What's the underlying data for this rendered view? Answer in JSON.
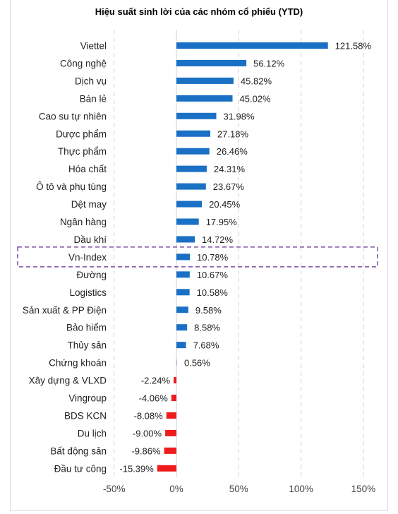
{
  "chart_data": {
    "type": "bar",
    "orientation": "horizontal",
    "title": "Hiệu suất sinh lời của các nhóm cổ phiếu (YTD)",
    "categories": [
      "Viettel",
      "Công nghệ",
      "Dịch vụ",
      "Bán lẻ",
      "Cao su tự nhiên",
      "Dược phẩm",
      "Thực phẩm",
      "Hóa chất",
      "Ô tô và phụ tùng",
      "Dệt may",
      "Ngân hàng",
      "Dầu khí",
      "Vn-Index",
      "Đường",
      "Logistics",
      "Sản xuất & PP Điện",
      "Bảo hiểm",
      "Thủy sản",
      "Chứng khoán",
      "Xây dựng & VLXD",
      "Vingroup",
      "BDS KCN",
      "Du lịch",
      "Bất động sản",
      "Đầu tư công"
    ],
    "values": [
      121.58,
      56.12,
      45.82,
      45.02,
      31.98,
      27.18,
      26.46,
      24.31,
      23.67,
      20.45,
      17.95,
      14.72,
      10.78,
      10.67,
      10.58,
      9.58,
      8.58,
      7.68,
      0.56,
      -2.24,
      -4.06,
      -8.08,
      -9.0,
      -9.86,
      -15.39
    ],
    "value_labels": [
      "121.58%",
      "56.12%",
      "45.82%",
      "45.02%",
      "31.98%",
      "27.18%",
      "26.46%",
      "24.31%",
      "23.67%",
      "20.45%",
      "17.95%",
      "14.72%",
      "10.78%",
      "10.67%",
      "10.58%",
      "9.58%",
      "8.58%",
      "7.68%",
      "0.56%",
      "-2.24%",
      "-4.06%",
      "-8.08%",
      "-9.00%",
      "-9.86%",
      "-15.39%"
    ],
    "x_ticks": [
      -50,
      0,
      50,
      100,
      150
    ],
    "x_tick_labels": [
      "-50%",
      "0%",
      "50%",
      "100%",
      "150%"
    ],
    "xlim": [
      -50,
      150
    ],
    "grid": "vertical dashed",
    "highlighted_category": "Vn-Index",
    "colors": {
      "positive": "#1a70c4",
      "negative": "#ee1c1c",
      "highlight_box": "#7b4fa8",
      "grid": "#d0d0d0"
    }
  }
}
